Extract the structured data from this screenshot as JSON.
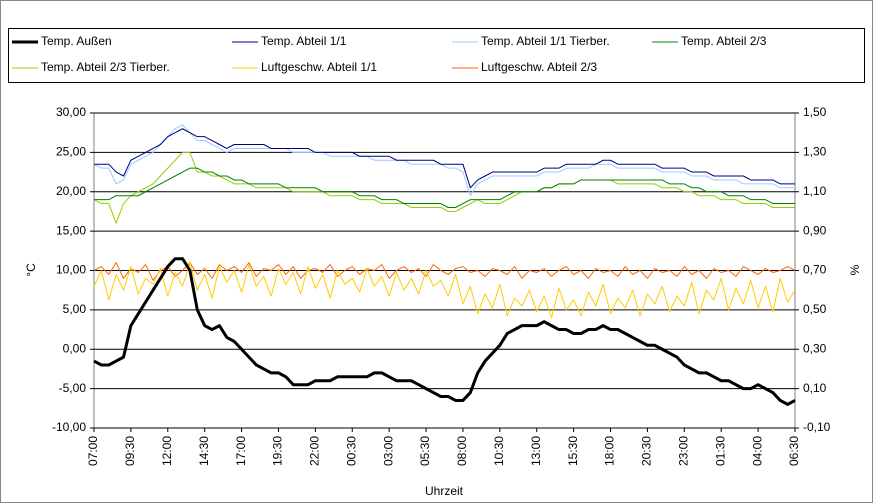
{
  "chart_data": {
    "type": "line",
    "xlabel": "Uhrzeit",
    "ylabel": "°C",
    "y2label": "%",
    "categories": [
      "07:00",
      null,
      null,
      null,
      null,
      "09:30",
      null,
      null,
      null,
      null,
      "12:00",
      null,
      null,
      null,
      null,
      "14:30",
      null,
      null,
      null,
      null,
      "17:00",
      null,
      null,
      null,
      null,
      "19:30",
      null,
      null,
      null,
      null,
      "22:00",
      null,
      null,
      null,
      null,
      "00:30",
      null,
      null,
      null,
      null,
      "03:00",
      null,
      null,
      null,
      null,
      "05:30",
      null,
      null,
      null,
      null,
      "08:00",
      null,
      null,
      null,
      null,
      "10:30",
      null,
      null,
      null,
      null,
      "13:00",
      null,
      null,
      null,
      null,
      "15:30",
      null,
      null,
      null,
      null,
      "18:00",
      null,
      null,
      null,
      null,
      "20:30",
      null,
      null,
      null,
      null,
      "23:00",
      null,
      null,
      null,
      null,
      "01:30",
      null,
      null,
      null,
      null,
      "04:00",
      null,
      null,
      null,
      null,
      "06:30"
    ],
    "ylim": [
      -10,
      30
    ],
    "yticks": [
      {
        "value": -10,
        "label": "-10,00"
      },
      {
        "value": -5,
        "label": "-5,00"
      },
      {
        "value": 0,
        "label": "0,00"
      },
      {
        "value": 5,
        "label": "5,00"
      },
      {
        "value": 10,
        "label": "10,00"
      },
      {
        "value": 15,
        "label": "15,00"
      },
      {
        "value": 20,
        "label": "20,00"
      },
      {
        "value": 25,
        "label": "25,00"
      },
      {
        "value": 30,
        "label": "30,00"
      }
    ],
    "y2lim": [
      -0.1,
      1.5
    ],
    "y2ticks": [
      {
        "value": -0.1,
        "label": "-0,10"
      },
      {
        "value": 0.1,
        "label": "0,10"
      },
      {
        "value": 0.3,
        "label": "0,30"
      },
      {
        "value": 0.5,
        "label": "0,50"
      },
      {
        "value": 0.7,
        "label": "0,70"
      },
      {
        "value": 0.9,
        "label": "0,90"
      },
      {
        "value": 1.1,
        "label": "1,10"
      },
      {
        "value": 1.3,
        "label": "1,30"
      },
      {
        "value": 1.5,
        "label": "1,50"
      }
    ],
    "grid": true,
    "legend": "top",
    "series": [
      {
        "name": "Temp. Außen",
        "color": "#000000",
        "width": 3,
        "values": [
          -1.5,
          -2,
          -2,
          -1.5,
          -1,
          3,
          4.5,
          6,
          7.5,
          9,
          10.5,
          11.5,
          11.5,
          10,
          5,
          3,
          2.5,
          3,
          1.5,
          1,
          0,
          -1,
          -2,
          -2.5,
          -3,
          -3,
          -3.5,
          -4.5,
          -4.5,
          -4.5,
          -4,
          -4,
          -4,
          -3.5,
          -3.5,
          -3.5,
          -3.5,
          -3.5,
          -3,
          -3,
          -3.5,
          -4,
          -4,
          -4,
          -4.5,
          -5,
          -5.5,
          -6,
          -6,
          -6.5,
          -6.5,
          -5.5,
          -3,
          -1.5,
          -0.5,
          0.5,
          2,
          2.5,
          3,
          3,
          3,
          3.5,
          3,
          2.5,
          2.5,
          2,
          2,
          2.5,
          2.5,
          3,
          2.5,
          2.5,
          2,
          1.5,
          1,
          0.5,
          0.5,
          0,
          -0.5,
          -1,
          -2,
          -2.5,
          -3,
          -3,
          -3.5,
          -4,
          -4,
          -4.5,
          -5,
          -5,
          -4.5,
          -5,
          -5.5,
          -6.5,
          -7,
          -6.5
        ]
      },
      {
        "name": "Temp. Abteil 1/1",
        "color": "#000080",
        "width": 1,
        "values": [
          23.5,
          23.5,
          23.5,
          22.5,
          22,
          24,
          24.5,
          25,
          25.5,
          26,
          27,
          27.5,
          28,
          27.5,
          27,
          27,
          26.5,
          26,
          25.5,
          26,
          26,
          26,
          26,
          26,
          25.5,
          25.5,
          25.5,
          25.5,
          25.5,
          25.5,
          25,
          25,
          25,
          25,
          25,
          25,
          24.5,
          24.5,
          24.5,
          24.5,
          24.5,
          24,
          24,
          24,
          24,
          24,
          24,
          23.5,
          23.5,
          23.5,
          23.5,
          20.5,
          21.5,
          22,
          22.5,
          22.5,
          22.5,
          22.5,
          22.5,
          22.5,
          22.5,
          23,
          23,
          23,
          23.5,
          23.5,
          23.5,
          23.5,
          23.5,
          24,
          24,
          23.5,
          23.5,
          23.5,
          23.5,
          23.5,
          23.5,
          23,
          23,
          23,
          23,
          22.5,
          22.5,
          22.5,
          22,
          22,
          22,
          22,
          22,
          21.5,
          21.5,
          21.5,
          21.5,
          21,
          21,
          21
        ]
      },
      {
        "name": "Temp. Abteil 1/1 Tierber.",
        "color": "#99ccff",
        "width": 1,
        "values": [
          23.5,
          23,
          23,
          21,
          21.5,
          23.5,
          24,
          24.5,
          25,
          26,
          27,
          28,
          28.5,
          27.5,
          26.5,
          26.5,
          26,
          25.5,
          25,
          25.5,
          25.5,
          25.5,
          25.5,
          25.5,
          25.5,
          25.5,
          25.5,
          25,
          25,
          25,
          25,
          25,
          24.5,
          24.5,
          24.5,
          24.5,
          24.5,
          24.5,
          24,
          24,
          24,
          24,
          24,
          23.5,
          23.5,
          23.5,
          23.5,
          23.5,
          23,
          23,
          22.5,
          19.5,
          21,
          21.5,
          22,
          22,
          22,
          22,
          22,
          22,
          22,
          22.5,
          22.5,
          22.5,
          23,
          23,
          23,
          23,
          23.5,
          23.5,
          23.5,
          23,
          23,
          23,
          23,
          23,
          23,
          22.5,
          22.5,
          22.5,
          22.5,
          22,
          22,
          22,
          21.5,
          21.5,
          21.5,
          21.5,
          21,
          21,
          21,
          21,
          21,
          20.5,
          20.5,
          20.5
        ]
      },
      {
        "name": "Temp. Abteil 2/3",
        "color": "#008000",
        "width": 1,
        "values": [
          19,
          19,
          19,
          19.5,
          19.5,
          19.5,
          19.5,
          20,
          20.5,
          21,
          21.5,
          22,
          22.5,
          23,
          23,
          22.5,
          22.5,
          22,
          22,
          21.5,
          21.5,
          21,
          21,
          21,
          21,
          21,
          20.5,
          20.5,
          20.5,
          20.5,
          20.5,
          20,
          20,
          20,
          20,
          20,
          19.5,
          19.5,
          19.5,
          19,
          19,
          19,
          18.5,
          18.5,
          18.5,
          18.5,
          18.5,
          18.5,
          18,
          18,
          18.5,
          19,
          19,
          19,
          19,
          19,
          19.5,
          20,
          20,
          20,
          20,
          20.5,
          20.5,
          21,
          21,
          21,
          21.5,
          21.5,
          21.5,
          21.5,
          21.5,
          21.5,
          21.5,
          21.5,
          21.5,
          21.5,
          21.5,
          21.5,
          21,
          21,
          21,
          20.5,
          20.5,
          20,
          20,
          20,
          19.5,
          19.5,
          19.5,
          19,
          19,
          19,
          18.5,
          18.5,
          18.5,
          18.5
        ]
      },
      {
        "name": "Temp. Abteil 2/3 Tierber.",
        "color": "#99cc00",
        "width": 1,
        "values": [
          19,
          18.5,
          18.5,
          16,
          18.5,
          19.5,
          20,
          20.5,
          21,
          22,
          23,
          24,
          25,
          25,
          22.5,
          22.5,
          22,
          22,
          21.5,
          21,
          21,
          21,
          20.5,
          20.5,
          20.5,
          20.5,
          20.5,
          20,
          20,
          20,
          20,
          20,
          19.5,
          19.5,
          19.5,
          19.5,
          19,
          19,
          19,
          18.5,
          18.5,
          18.5,
          18.5,
          18,
          18,
          18,
          18,
          18,
          17.5,
          17.5,
          18,
          18.5,
          19,
          18.5,
          18.5,
          18.5,
          19,
          19.5,
          20,
          20,
          20,
          20.5,
          20.5,
          21,
          21,
          21,
          21.5,
          21.5,
          21.5,
          21.5,
          21.5,
          21,
          21,
          21,
          21,
          21,
          21,
          20.5,
          20.5,
          20.5,
          20,
          20,
          19.5,
          19.5,
          19.5,
          19,
          19,
          19,
          18.5,
          18.5,
          18.5,
          18.5,
          18,
          18,
          18,
          18
        ]
      },
      {
        "name": "Luftgeschw. Abteil 1/1",
        "color": "#ffcc00",
        "width": 1,
        "axis": "y2",
        "values": [
          0.62,
          0.7,
          0.55,
          0.68,
          0.6,
          0.72,
          0.58,
          0.66,
          0.63,
          0.71,
          0.57,
          0.69,
          0.62,
          0.74,
          0.6,
          0.68,
          0.56,
          0.72,
          0.64,
          0.7,
          0.59,
          0.73,
          0.62,
          0.67,
          0.57,
          0.71,
          0.63,
          0.69,
          0.58,
          0.72,
          0.61,
          0.68,
          0.56,
          0.7,
          0.63,
          0.66,
          0.59,
          0.71,
          0.62,
          0.67,
          0.57,
          0.69,
          0.6,
          0.66,
          0.58,
          0.7,
          0.62,
          0.65,
          0.57,
          0.68,
          0.53,
          0.62,
          0.48,
          0.58,
          0.51,
          0.63,
          0.47,
          0.56,
          0.52,
          0.6,
          0.49,
          0.57,
          0.46,
          0.61,
          0.5,
          0.55,
          0.47,
          0.59,
          0.52,
          0.63,
          0.48,
          0.56,
          0.51,
          0.6,
          0.47,
          0.58,
          0.53,
          0.62,
          0.49,
          0.57,
          0.52,
          0.64,
          0.48,
          0.6,
          0.55,
          0.66,
          0.5,
          0.61,
          0.53,
          0.65,
          0.51,
          0.62,
          0.49,
          0.66,
          0.54,
          0.6
        ]
      },
      {
        "name": "Luftgeschw. Abteil 2/3",
        "color": "#ff6600",
        "width": 1,
        "axis": "y2",
        "values": [
          0.7,
          0.72,
          0.68,
          0.74,
          0.66,
          0.71,
          0.69,
          0.73,
          0.65,
          0.7,
          0.72,
          0.67,
          0.7,
          0.74,
          0.68,
          0.71,
          0.66,
          0.73,
          0.7,
          0.72,
          0.69,
          0.74,
          0.67,
          0.71,
          0.7,
          0.73,
          0.68,
          0.72,
          0.66,
          0.7,
          0.71,
          0.69,
          0.73,
          0.67,
          0.7,
          0.72,
          0.68,
          0.71,
          0.7,
          0.73,
          0.66,
          0.7,
          0.72,
          0.69,
          0.71,
          0.67,
          0.73,
          0.7,
          0.68,
          0.71,
          0.72,
          0.69,
          0.7,
          0.67,
          0.71,
          0.7,
          0.68,
          0.72,
          0.66,
          0.7,
          0.69,
          0.71,
          0.67,
          0.7,
          0.72,
          0.68,
          0.7,
          0.66,
          0.71,
          0.69,
          0.7,
          0.67,
          0.72,
          0.68,
          0.7,
          0.66,
          0.71,
          0.69,
          0.7,
          0.67,
          0.72,
          0.68,
          0.7,
          0.66,
          0.71,
          0.69,
          0.7,
          0.67,
          0.72,
          0.7,
          0.68,
          0.71,
          0.69,
          0.7,
          0.72,
          0.7
        ]
      }
    ]
  }
}
